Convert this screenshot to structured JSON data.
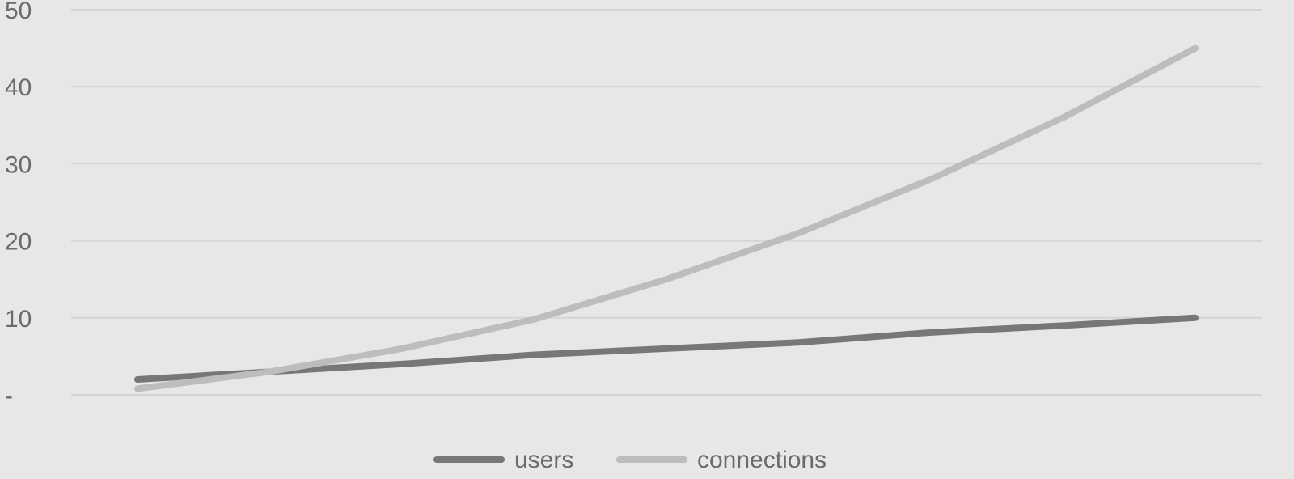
{
  "chart_data": {
    "type": "line",
    "title": "",
    "xlabel": "",
    "ylabel": "",
    "x": [
      1,
      2,
      3,
      4,
      5,
      6,
      7,
      8,
      9
    ],
    "ylim": [
      0,
      50
    ],
    "yticks": [
      0,
      10,
      20,
      30,
      40,
      50
    ],
    "ytick_labels": [
      "-",
      "10",
      "20",
      "30",
      "40",
      "50"
    ],
    "grid": true,
    "legend": "bottom",
    "series": [
      {
        "name": "users",
        "color": "#777777",
        "values": [
          2,
          3,
          4,
          5.2,
          6,
          6.8,
          8.1,
          9,
          10
        ]
      },
      {
        "name": "connections",
        "color": "#bdbdbd",
        "values": [
          0.8,
          3,
          6,
          9.8,
          15,
          21,
          28,
          36,
          45
        ]
      }
    ]
  }
}
